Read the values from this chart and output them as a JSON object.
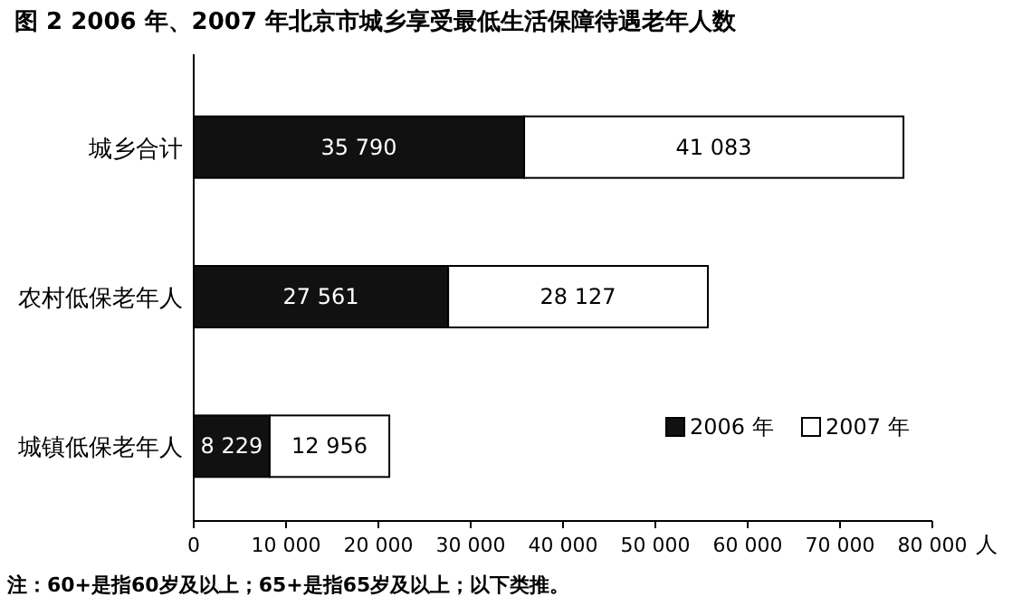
{
  "chart_data": {
    "type": "bar",
    "orientation": "horizontal",
    "stacked": true,
    "title": "图 2  2006 年、2007 年北京市城乡享受最低生活保障待遇老年人数",
    "xlabel": "人",
    "categories": [
      "城乡合计",
      "农村低保老年人",
      "城镇低保老年人"
    ],
    "series": [
      {
        "name": "2006 年",
        "color": "#111111",
        "values": [
          35790,
          27561,
          8229
        ],
        "value_labels": [
          "35 790",
          "27 561",
          "8 229"
        ]
      },
      {
        "name": "2007 年",
        "color": "#ffffff",
        "values": [
          41083,
          28127,
          12956
        ],
        "value_labels": [
          "41 083",
          "28 127",
          "12 956"
        ]
      }
    ],
    "xlim": [
      0,
      80000
    ],
    "xticks": [
      0,
      {
        "value": 10000,
        "label": "10 000"
      },
      {
        "value": 20000,
        "label": "20 000"
      },
      {
        "value": 30000,
        "label": "30 000"
      },
      {
        "value": 40000,
        "label": "40 000"
      },
      {
        "value": 50000,
        "label": "50 000"
      },
      {
        "value": 60000,
        "label": "60 000"
      },
      {
        "value": 70000,
        "label": "70 000"
      },
      {
        "value": 80000,
        "label": "80 000"
      }
    ],
    "grid": false,
    "legend": "bottom right",
    "annotations": [
      "注：60+是指60岁及以上；65+是指65岁及以上；以下类推。"
    ]
  }
}
